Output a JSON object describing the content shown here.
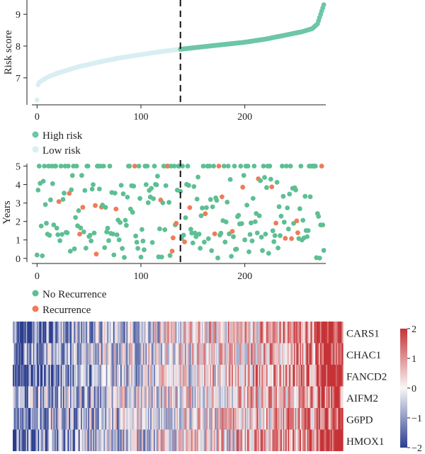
{
  "colors": {
    "high_risk": "#6cc6a7",
    "low_risk": "#d8eef2",
    "no_recurrence": "#5dbf93",
    "recurrence": "#ef7b57",
    "heat_low": "#2b3d8f",
    "heat_mid": "#f7f7f7",
    "heat_high": "#c73236"
  },
  "chart_data": [
    {
      "type": "scatter",
      "name": "risk-score-panel",
      "ylabel": "Risk score",
      "xlabel": "",
      "xlim": [
        -5,
        278
      ],
      "ylim": [
        6.15,
        9.45
      ],
      "xticks": [
        "0",
        "100",
        "200"
      ],
      "xtick_values": [
        0,
        100,
        200
      ],
      "yticks": [
        "7",
        "8",
        "9"
      ],
      "ytick_values": [
        7,
        8,
        9
      ],
      "n_samples": 276,
      "cutoff_index": 138,
      "curve_points": [
        [
          0,
          6.3
        ],
        [
          1,
          6.78
        ],
        [
          2,
          6.85
        ],
        [
          5,
          6.92
        ],
        [
          10,
          7.02
        ],
        [
          20,
          7.15
        ],
        [
          40,
          7.35
        ],
        [
          60,
          7.5
        ],
        [
          80,
          7.63
        ],
        [
          100,
          7.73
        ],
        [
          120,
          7.83
        ],
        [
          138,
          7.9
        ],
        [
          160,
          7.98
        ],
        [
          180,
          8.05
        ],
        [
          200,
          8.12
        ],
        [
          220,
          8.22
        ],
        [
          240,
          8.35
        ],
        [
          255,
          8.45
        ],
        [
          265,
          8.55
        ],
        [
          270,
          8.7
        ],
        [
          273,
          9.0
        ],
        [
          276,
          9.3
        ]
      ],
      "legend": [
        {
          "label": "High risk",
          "color_key": "high_risk"
        },
        {
          "label": "Low risk",
          "color_key": "low_risk"
        }
      ]
    },
    {
      "type": "scatter",
      "name": "survival-years-panel",
      "ylabel": "Years",
      "xlabel": "",
      "xlim": [
        -5,
        278
      ],
      "ylim": [
        -0.2,
        5.25
      ],
      "xticks": [
        "0",
        "100",
        "200"
      ],
      "xtick_values": [
        0,
        100,
        200
      ],
      "yticks": [
        "0",
        "1",
        "2",
        "3",
        "4",
        "5"
      ],
      "ytick_values": [
        0,
        1,
        2,
        3,
        4,
        5
      ],
      "cutoff_index": 138,
      "legend": [
        {
          "label": "No Recurrence",
          "color_key": "no_recurrence"
        },
        {
          "label": "Recurrence",
          "color_key": "recurrence"
        }
      ]
    },
    {
      "type": "heatmap",
      "name": "gene-expression-heatmap",
      "rows": [
        "CARS1",
        "CHAC1",
        "FANCD2",
        "AIFM2",
        "G6PD",
        "HMOX1"
      ],
      "row_trend": [
        0.9,
        0.7,
        1.0,
        0.6,
        0.7,
        0.85
      ],
      "n_columns": 276,
      "colorbar_ticks": [
        "2",
        "1",
        "0",
        "−1",
        "−2"
      ],
      "colorbar_tick_values": [
        2,
        1,
        0,
        -1,
        -2
      ],
      "zlim": [
        -2,
        2
      ]
    }
  ]
}
